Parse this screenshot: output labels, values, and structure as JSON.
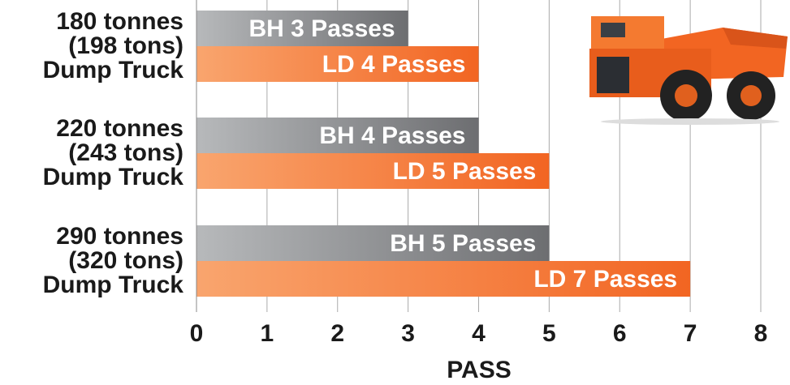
{
  "chart_data": {
    "type": "bar",
    "orientation": "horizontal",
    "categories": [
      [
        "180 tonnes",
        "(198 tons)",
        "Dump Truck"
      ],
      [
        "220 tonnes",
        "(243 tons)",
        "Dump Truck"
      ],
      [
        "290 tonnes",
        "(320 tons)",
        "Dump Truck"
      ]
    ],
    "series": [
      {
        "name": "BH",
        "color": "#6d6e71",
        "values": [
          3,
          4,
          5
        ],
        "value_labels": [
          "BH 3 Passes",
          "BH 4 Passes",
          "BH 5 Passes"
        ]
      },
      {
        "name": "LD",
        "color": "#f26522",
        "values": [
          4,
          5,
          7
        ],
        "value_labels": [
          "LD 4 Passes",
          "LD 5 Passes",
          "LD 7 Passes"
        ]
      }
    ],
    "xlabel": "PASS",
    "xlim": [
      0,
      8
    ],
    "xticks": [
      0,
      1,
      2,
      3,
      4,
      5,
      6,
      7,
      8
    ],
    "grid": true
  }
}
